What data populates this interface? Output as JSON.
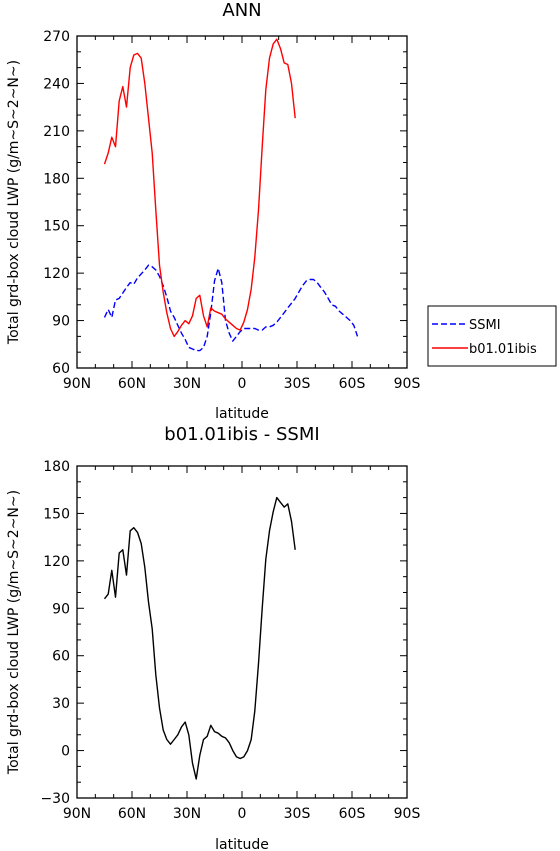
{
  "chart_data": [
    {
      "type": "line",
      "title": "ANN",
      "xlabel": "latitude",
      "ylabel": "Total grd-box cloud LWP (g/m~S~2~N~)",
      "xlim": [
        -90,
        90
      ],
      "ylim": [
        60,
        270
      ],
      "xticks": [
        -90,
        -60,
        -30,
        0,
        30,
        60,
        90
      ],
      "xtick_labels": [
        "90N",
        "60N",
        "30N",
        "0",
        "30S",
        "60S",
        "90S"
      ],
      "yticks": [
        60,
        90,
        120,
        150,
        180,
        210,
        240,
        270
      ],
      "ytick_labels": [
        "60",
        "90",
        "120",
        "150",
        "180",
        "210",
        "240",
        "270"
      ],
      "legend_position": "outside-right",
      "series": [
        {
          "name": "SSMI",
          "color": "#0000ff",
          "dash": "dashed",
          "points": [
            [
              -75,
              92
            ],
            [
              -73,
              97
            ],
            [
              -71,
              92
            ],
            [
              -69,
              103
            ],
            [
              -67,
              104
            ],
            [
              -63,
              111
            ],
            [
              -61,
              114
            ],
            [
              -59,
              113
            ],
            [
              -57,
              117
            ],
            [
              -53,
              122
            ],
            [
              -51,
              125
            ],
            [
              -49,
              124
            ],
            [
              -47,
              122
            ],
            [
              -45,
              118
            ],
            [
              -43,
              112
            ],
            [
              -41,
              105
            ],
            [
              -39,
              96
            ],
            [
              -37,
              92
            ],
            [
              -35,
              87
            ],
            [
              -33,
              82
            ],
            [
              -31,
              78
            ],
            [
              -29,
              73
            ],
            [
              -27,
              72
            ],
            [
              -25,
              71
            ],
            [
              -23,
              71
            ],
            [
              -21,
              73
            ],
            [
              -19,
              80
            ],
            [
              -17,
              95
            ],
            [
              -15,
              115
            ],
            [
              -13,
              123
            ],
            [
              -11,
              114
            ],
            [
              -9,
              90
            ],
            [
              -7,
              82
            ],
            [
              -5,
              77
            ],
            [
              -3,
              80
            ],
            [
              -1,
              83
            ],
            [
              1,
              85
            ],
            [
              3,
              85
            ],
            [
              5,
              85
            ],
            [
              7,
              85
            ],
            [
              9,
              84
            ],
            [
              11,
              84
            ],
            [
              13,
              86
            ],
            [
              15,
              86
            ],
            [
              17,
              87
            ],
            [
              19,
              89
            ],
            [
              21,
              92
            ],
            [
              23,
              95
            ],
            [
              25,
              98
            ],
            [
              27,
              101
            ],
            [
              29,
              104
            ],
            [
              31,
              108
            ],
            [
              33,
              112
            ],
            [
              35,
              115
            ],
            [
              37,
              116
            ],
            [
              39,
              116
            ],
            [
              41,
              114
            ],
            [
              43,
              111
            ],
            [
              45,
              108
            ],
            [
              47,
              104
            ],
            [
              49,
              100
            ],
            [
              51,
              99
            ],
            [
              53,
              96
            ],
            [
              55,
              94
            ],
            [
              57,
              92
            ],
            [
              59,
              90
            ],
            [
              61,
              87
            ],
            [
              63,
              80
            ]
          ]
        },
        {
          "name": "b01.01ibis",
          "color": "#ff0000",
          "dash": "solid",
          "points": [
            [
              -75,
              189
            ],
            [
              -73,
              196
            ],
            [
              -71,
              206
            ],
            [
              -69,
              200
            ],
            [
              -67,
              229
            ],
            [
              -65,
              238
            ],
            [
              -63,
              225
            ],
            [
              -61,
              250
            ],
            [
              -59,
              258
            ],
            [
              -57,
              259
            ],
            [
              -55,
              256
            ],
            [
              -53,
              240
            ],
            [
              -51,
              218
            ],
            [
              -49,
              196
            ],
            [
              -47,
              160
            ],
            [
              -45,
              125
            ],
            [
              -43,
              108
            ],
            [
              -41,
              95
            ],
            [
              -39,
              85
            ],
            [
              -37,
              80
            ],
            [
              -35,
              83
            ],
            [
              -33,
              87
            ],
            [
              -31,
              90
            ],
            [
              -29,
              88
            ],
            [
              -27,
              93
            ],
            [
              -25,
              104
            ],
            [
              -23,
              106
            ],
            [
              -21,
              93
            ],
            [
              -19,
              86
            ],
            [
              -17,
              98
            ],
            [
              -15,
              96
            ],
            [
              -13,
              95
            ],
            [
              -11,
              94
            ],
            [
              -9,
              91
            ],
            [
              -7,
              89
            ],
            [
              -5,
              87
            ],
            [
              -3,
              85
            ],
            [
              -1,
              84
            ],
            [
              1,
              89
            ],
            [
              3,
              97
            ],
            [
              5,
              110
            ],
            [
              7,
              130
            ],
            [
              9,
              160
            ],
            [
              11,
              200
            ],
            [
              13,
              236
            ],
            [
              15,
              256
            ],
            [
              17,
              265
            ],
            [
              19,
              268
            ],
            [
              21,
              262
            ],
            [
              23,
              253
            ],
            [
              25,
              252
            ],
            [
              27,
              240
            ],
            [
              29,
              218
            ]
          ]
        }
      ]
    },
    {
      "type": "line",
      "title": "b01.01ibis - SSMI",
      "xlabel": "latitude",
      "ylabel": "Total grd-box cloud LWP (g/m~S~2~N~)",
      "xlim": [
        -90,
        90
      ],
      "ylim": [
        -30,
        180
      ],
      "xticks": [
        -90,
        -60,
        -30,
        0,
        30,
        60,
        90
      ],
      "xtick_labels": [
        "90N",
        "60N",
        "30N",
        "0",
        "30S",
        "60S",
        "90S"
      ],
      "yticks": [
        -30,
        0,
        30,
        60,
        90,
        120,
        150,
        180
      ],
      "ytick_labels": [
        "−30",
        "0",
        "30",
        "60",
        "90",
        "120",
        "150",
        "180"
      ],
      "series": [
        {
          "color": "#000000",
          "dash": "solid",
          "points": [
            [
              -75,
              96
            ],
            [
              -73,
              99
            ],
            [
              -71,
              114
            ],
            [
              -69,
              97
            ],
            [
              -67,
              125
            ],
            [
              -65,
              127
            ],
            [
              -63,
              111
            ],
            [
              -61,
              139
            ],
            [
              -59,
              141
            ],
            [
              -57,
              138
            ],
            [
              -55,
              131
            ],
            [
              -53,
              116
            ],
            [
              -51,
              94
            ],
            [
              -49,
              77
            ],
            [
              -47,
              48
            ],
            [
              -45,
              27
            ],
            [
              -43,
              13
            ],
            [
              -41,
              7
            ],
            [
              -39,
              4
            ],
            [
              -37,
              7
            ],
            [
              -35,
              10
            ],
            [
              -33,
              15
            ],
            [
              -31,
              18
            ],
            [
              -29,
              10
            ],
            [
              -27,
              -8
            ],
            [
              -25,
              -18
            ],
            [
              -23,
              -3
            ],
            [
              -21,
              7
            ],
            [
              -19,
              9
            ],
            [
              -17,
              16
            ],
            [
              -15,
              12
            ],
            [
              -13,
              11
            ],
            [
              -11,
              9
            ],
            [
              -9,
              8
            ],
            [
              -7,
              5
            ],
            [
              -5,
              0
            ],
            [
              -3,
              -4
            ],
            [
              -1,
              -5
            ],
            [
              1,
              -4
            ],
            [
              3,
              0
            ],
            [
              5,
              7
            ],
            [
              7,
              25
            ],
            [
              9,
              55
            ],
            [
              11,
              90
            ],
            [
              13,
              121
            ],
            [
              15,
              139
            ],
            [
              17,
              151
            ],
            [
              19,
              160
            ],
            [
              21,
              157
            ],
            [
              23,
              154
            ],
            [
              25,
              156
            ],
            [
              27,
              145
            ],
            [
              29,
              127
            ]
          ]
        }
      ]
    }
  ]
}
